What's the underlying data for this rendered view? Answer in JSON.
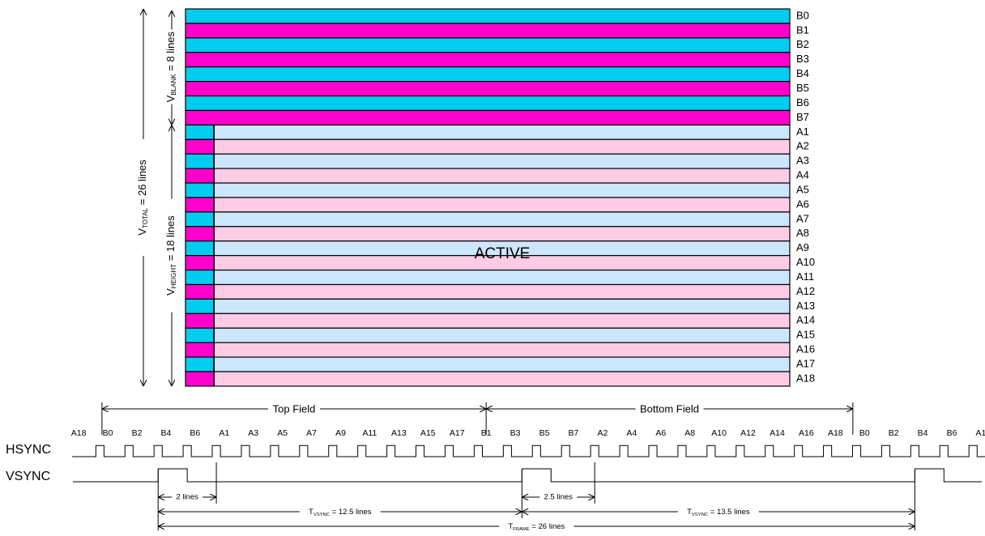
{
  "active_label": "ACTIVE",
  "colors": {
    "blank_odd": "#00ccf0",
    "blank_even": "#ff00cc",
    "active_odd": "#cce6fb",
    "active_even": "#ffcce6",
    "border": "#000000"
  },
  "blank_rows": [
    "B0",
    "B1",
    "B2",
    "B3",
    "B4",
    "B5",
    "B6",
    "B7"
  ],
  "active_rows": [
    "A1",
    "A2",
    "A3",
    "A4",
    "A5",
    "A6",
    "A7",
    "A8",
    "A9",
    "A10",
    "A11",
    "A12",
    "A13",
    "A14",
    "A15",
    "A16",
    "A17",
    "A18"
  ],
  "vertical_labels": {
    "total": {
      "prefix": "V",
      "sub": "TOTAL",
      "suffix": " = 26 lines"
    },
    "blank": {
      "prefix": "V",
      "sub": "BLANK",
      "suffix": " = 8 lines"
    },
    "height": {
      "prefix": "V",
      "sub": "HEIGHT",
      "suffix": " = 18 lines"
    }
  },
  "fields": {
    "top": "Top Field",
    "bottom": "Bottom Field"
  },
  "signals": {
    "hsync": "HSYNC",
    "vsync": "VSYNC"
  },
  "timing_line_labels": [
    "A18",
    "B0",
    "B2",
    "B4",
    "B6",
    "A1",
    "A3",
    "A5",
    "A7",
    "A9",
    "A11",
    "A13",
    "A15",
    "A17",
    "B1",
    "B3",
    "B5",
    "B7",
    "A2",
    "A4",
    "A6",
    "A8",
    "A10",
    "A12",
    "A14",
    "A16",
    "A18",
    "B0",
    "B2",
    "B4",
    "B6",
    "A1"
  ],
  "annotations": {
    "two_lines": "2 lines",
    "two_half_lines": "2.5 lines",
    "tvsync_1": {
      "prefix": "T",
      "sub": "VSYNC",
      "suffix": " = 12.5 lines"
    },
    "tvsync_2": {
      "prefix": "T",
      "sub": "VSYNC",
      "suffix": " = 13.5 lines"
    },
    "tframe": {
      "prefix": "T",
      "sub": "FRAME",
      "suffix": " = 26 lines"
    }
  }
}
